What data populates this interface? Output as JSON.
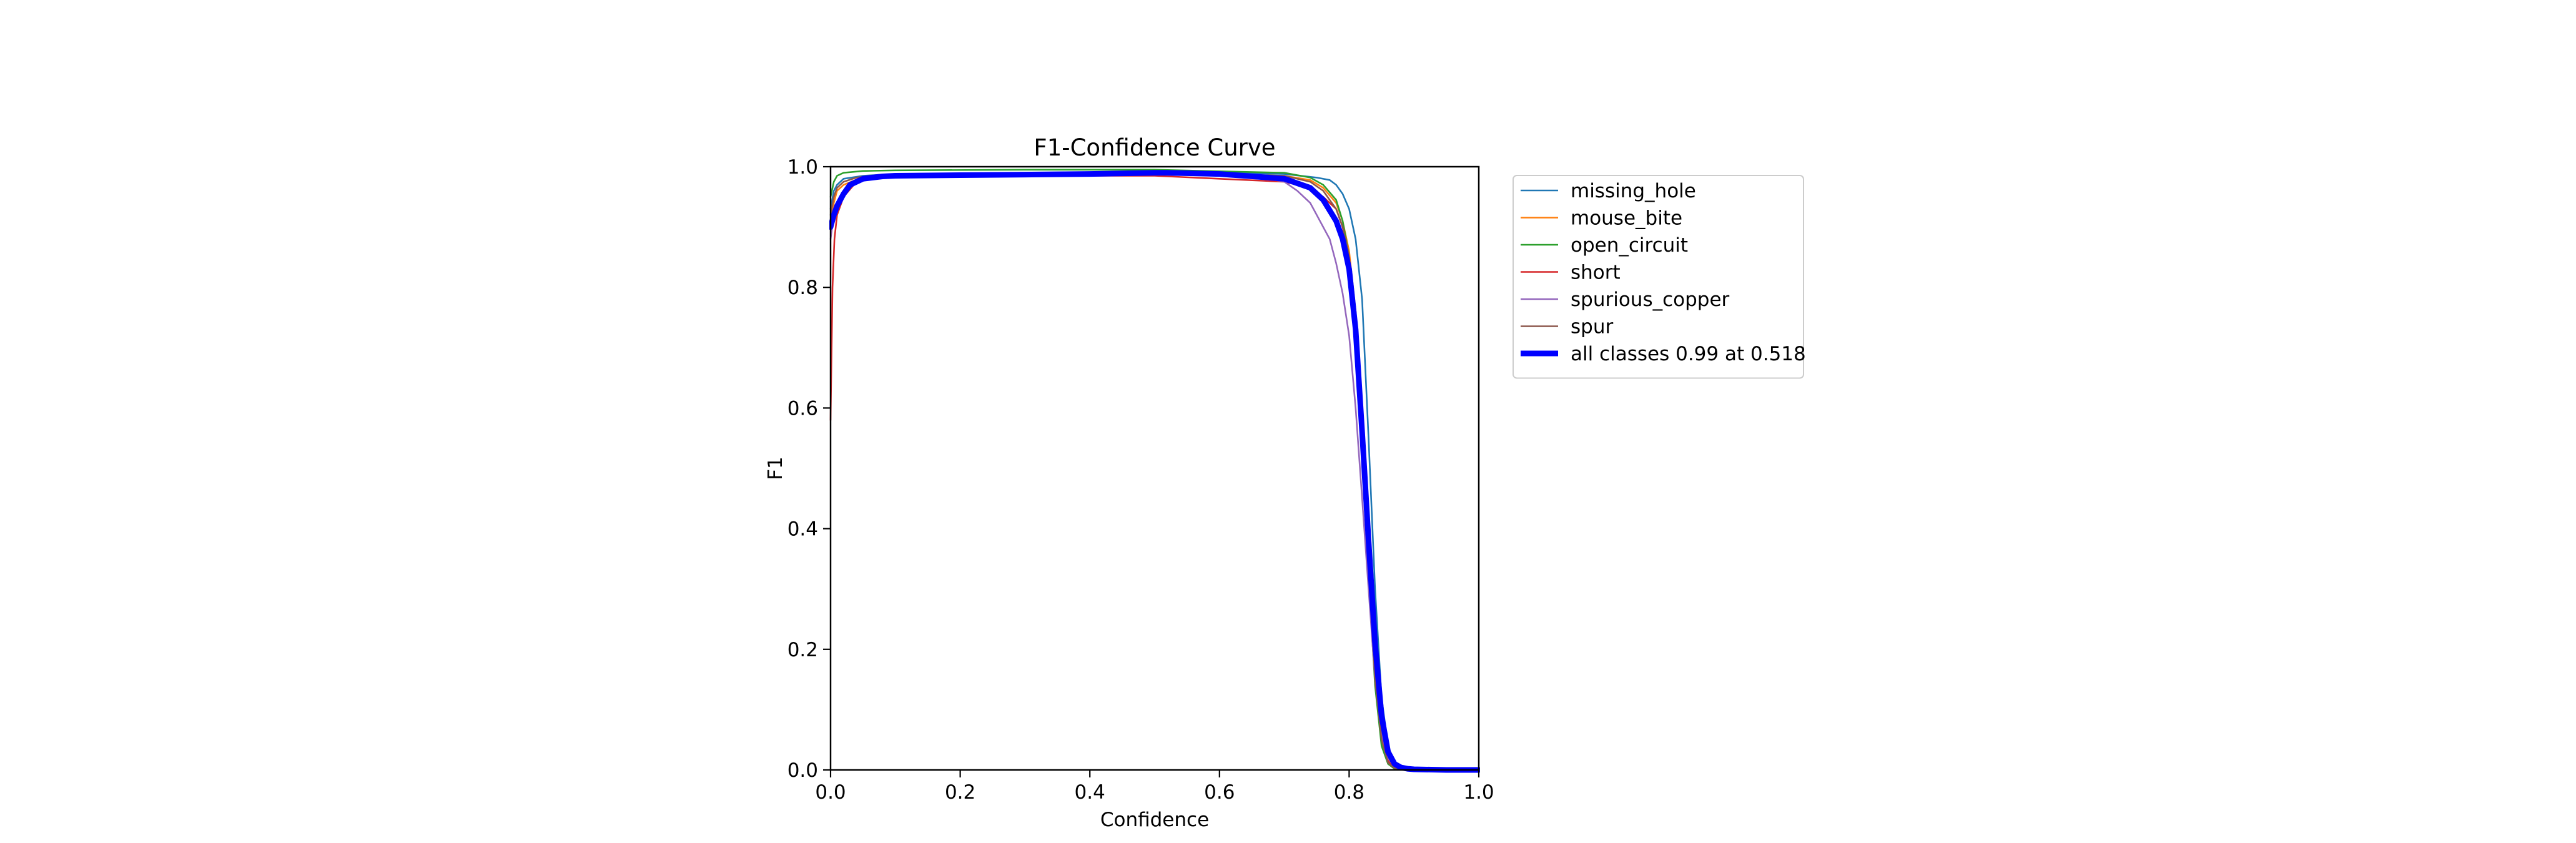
{
  "chart_data": {
    "type": "line",
    "title": "F1-Confidence Curve",
    "xlabel": "Confidence",
    "ylabel": "F1",
    "xlim": [
      0,
      1
    ],
    "ylim": [
      0,
      1
    ],
    "xticks": [
      "0.0",
      "0.2",
      "0.4",
      "0.6",
      "0.8",
      "1.0"
    ],
    "yticks": [
      "0.0",
      "0.2",
      "0.4",
      "0.6",
      "0.8",
      "1.0"
    ],
    "grid": false,
    "legend_position": "outside-top-right",
    "series": [
      {
        "name": "missing_hole",
        "color": "#1f77b4",
        "width": "thin",
        "x": [
          0,
          0.005,
          0.01,
          0.02,
          0.05,
          0.1,
          0.3,
          0.5,
          0.7,
          0.75,
          0.77,
          0.78,
          0.79,
          0.8,
          0.81,
          0.82,
          0.83,
          0.84,
          0.85,
          0.86,
          0.87,
          0.88,
          0.9,
          1.0
        ],
        "y": [
          0.93,
          0.96,
          0.97,
          0.98,
          0.985,
          0.988,
          0.99,
          0.992,
          0.988,
          0.982,
          0.978,
          0.97,
          0.955,
          0.93,
          0.88,
          0.78,
          0.55,
          0.3,
          0.12,
          0.04,
          0.01,
          0.003,
          0.001,
          0
        ]
      },
      {
        "name": "mouse_bite",
        "color": "#ff7f0e",
        "width": "thin",
        "x": [
          0,
          0.005,
          0.01,
          0.02,
          0.05,
          0.1,
          0.3,
          0.5,
          0.7,
          0.74,
          0.76,
          0.78,
          0.79,
          0.8,
          0.81,
          0.82,
          0.83,
          0.84,
          0.85,
          0.86,
          0.87,
          0.88,
          0.9,
          1.0
        ],
        "y": [
          0.9,
          0.94,
          0.96,
          0.97,
          0.983,
          0.986,
          0.988,
          0.99,
          0.985,
          0.978,
          0.965,
          0.94,
          0.91,
          0.86,
          0.76,
          0.58,
          0.36,
          0.16,
          0.06,
          0.015,
          0.004,
          0.001,
          0,
          0
        ]
      },
      {
        "name": "open_circuit",
        "color": "#2ca02c",
        "width": "thin",
        "x": [
          0,
          0.005,
          0.01,
          0.02,
          0.05,
          0.1,
          0.3,
          0.5,
          0.7,
          0.74,
          0.76,
          0.78,
          0.79,
          0.8,
          0.81,
          0.82,
          0.83,
          0.84,
          0.85,
          0.86,
          0.87,
          0.88,
          0.9,
          1.0
        ],
        "y": [
          0.95,
          0.975,
          0.985,
          0.99,
          0.993,
          0.994,
          0.995,
          0.995,
          0.99,
          0.982,
          0.97,
          0.945,
          0.91,
          0.85,
          0.74,
          0.55,
          0.32,
          0.14,
          0.04,
          0.01,
          0.002,
          0.001,
          0,
          0
        ]
      },
      {
        "name": "short",
        "color": "#d62728",
        "width": "thin",
        "x": [
          0,
          0.003,
          0.006,
          0.01,
          0.02,
          0.04,
          0.06,
          0.1,
          0.3,
          0.5,
          0.6,
          0.7,
          0.74,
          0.76,
          0.78,
          0.79,
          0.8,
          0.81,
          0.82,
          0.83,
          0.84,
          0.85,
          0.86,
          0.87,
          0.88,
          0.9,
          1.0
        ],
        "y": [
          0.58,
          0.8,
          0.88,
          0.92,
          0.95,
          0.975,
          0.98,
          0.983,
          0.985,
          0.985,
          0.98,
          0.975,
          0.965,
          0.95,
          0.93,
          0.9,
          0.85,
          0.76,
          0.6,
          0.38,
          0.18,
          0.06,
          0.015,
          0.004,
          0.001,
          0,
          0
        ]
      },
      {
        "name": "spurious_copper",
        "color": "#9467bd",
        "width": "thin",
        "x": [
          0,
          0.005,
          0.01,
          0.02,
          0.04,
          0.06,
          0.1,
          0.3,
          0.5,
          0.65,
          0.7,
          0.72,
          0.74,
          0.75,
          0.76,
          0.77,
          0.78,
          0.79,
          0.8,
          0.81,
          0.82,
          0.83,
          0.84,
          0.85,
          0.86,
          0.87,
          0.88,
          0.9,
          1.0
        ],
        "y": [
          0.88,
          0.92,
          0.94,
          0.96,
          0.975,
          0.98,
          0.984,
          0.986,
          0.988,
          0.985,
          0.975,
          0.96,
          0.94,
          0.92,
          0.9,
          0.88,
          0.84,
          0.79,
          0.72,
          0.6,
          0.45,
          0.3,
          0.15,
          0.06,
          0.02,
          0.005,
          0.001,
          0,
          0
        ]
      },
      {
        "name": "spur",
        "color": "#8c564b",
        "width": "thin",
        "x": [
          0,
          0.005,
          0.01,
          0.02,
          0.04,
          0.06,
          0.1,
          0.3,
          0.5,
          0.7,
          0.74,
          0.76,
          0.78,
          0.79,
          0.8,
          0.81,
          0.82,
          0.83,
          0.84,
          0.85,
          0.86,
          0.87,
          0.88,
          0.9,
          1.0
        ],
        "y": [
          0.92,
          0.95,
          0.965,
          0.975,
          0.982,
          0.985,
          0.987,
          0.989,
          0.99,
          0.985,
          0.975,
          0.96,
          0.93,
          0.9,
          0.85,
          0.75,
          0.57,
          0.35,
          0.15,
          0.05,
          0.012,
          0.003,
          0.001,
          0,
          0
        ]
      },
      {
        "name": "all classes 0.99 at 0.518",
        "color": "#0000ff",
        "width": "thick",
        "x": [
          0,
          0.005,
          0.01,
          0.02,
          0.03,
          0.05,
          0.08,
          0.1,
          0.2,
          0.3,
          0.4,
          0.5,
          0.518,
          0.6,
          0.7,
          0.74,
          0.76,
          0.78,
          0.79,
          0.8,
          0.81,
          0.82,
          0.83,
          0.84,
          0.85,
          0.86,
          0.87,
          0.88,
          0.89,
          0.9,
          0.95,
          1.0
        ],
        "y": [
          0.9,
          0.92,
          0.935,
          0.955,
          0.97,
          0.98,
          0.984,
          0.985,
          0.986,
          0.987,
          0.988,
          0.99,
          0.99,
          0.988,
          0.98,
          0.965,
          0.945,
          0.91,
          0.88,
          0.83,
          0.73,
          0.56,
          0.38,
          0.21,
          0.09,
          0.03,
          0.01,
          0.004,
          0.002,
          0.001,
          0,
          0
        ]
      }
    ]
  }
}
